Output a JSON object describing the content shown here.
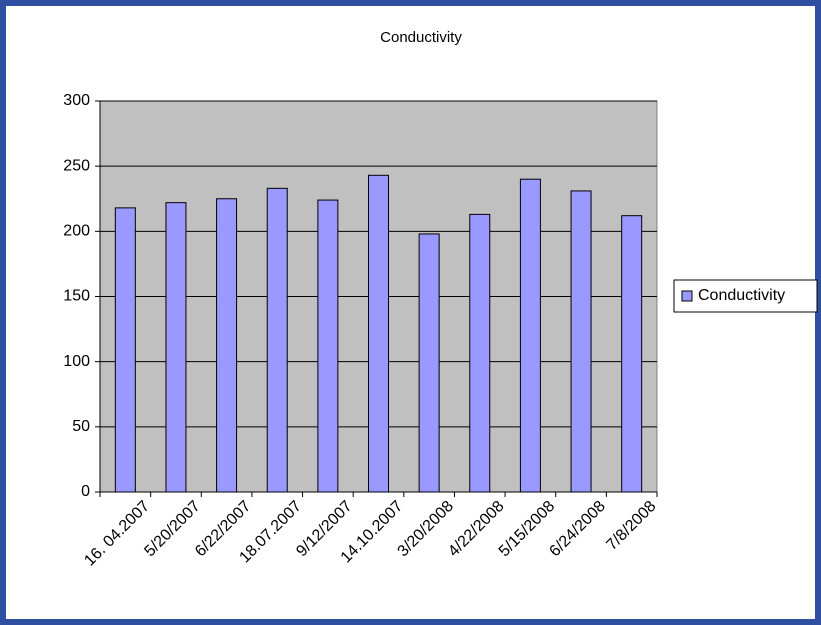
{
  "chart_data": {
    "type": "bar",
    "title": "Conductivity",
    "categories": [
      "16. 04.2007",
      "5/20/2007",
      "6/22/2007",
      "18.07.2007",
      "9/12/2007",
      "14.10.2007",
      "3/20/2008",
      "4/22/2008",
      "5/15/2008",
      "6/24/2008",
      "7/8/2008"
    ],
    "series": [
      {
        "name": "Conductivity",
        "color": "#9999ff",
        "values": [
          218,
          222,
          225,
          233,
          224,
          243,
          198,
          213,
          240,
          231,
          212
        ]
      }
    ],
    "ylim": [
      0,
      300
    ],
    "yticks": [
      0,
      50,
      100,
      150,
      200,
      250,
      300
    ],
    "grid": true,
    "legend": "right"
  }
}
